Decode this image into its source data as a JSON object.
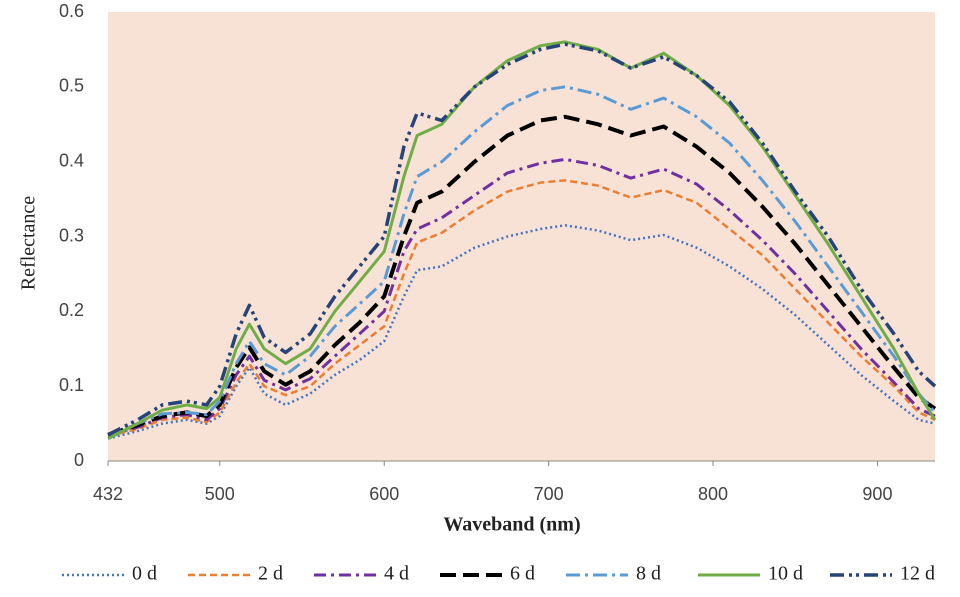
{
  "chart_data": {
    "type": "line",
    "x_label": "Waveband (nm)",
    "y_label": "Reflectance",
    "x": [
      432,
      450,
      465,
      480,
      492,
      500,
      510,
      518,
      527,
      540,
      555,
      570,
      585,
      600,
      612,
      620,
      635,
      655,
      675,
      695,
      710,
      730,
      750,
      770,
      790,
      810,
      830,
      850,
      870,
      890,
      910,
      925,
      935
    ],
    "xlim": [
      432,
      935
    ],
    "xticks": [
      432,
      500,
      600,
      700,
      800,
      900
    ],
    "ylim": [
      0,
      0.6
    ],
    "yticks": [
      0,
      0.1,
      0.2,
      0.3,
      0.4,
      0.5,
      0.6
    ],
    "background": "#f8e2d6",
    "legend": "bottom",
    "series": [
      {
        "name": "0 d",
        "color": "#4472c4",
        "dash": "2 3",
        "width": 2.5,
        "values": [
          0.03,
          0.04,
          0.05,
          0.055,
          0.05,
          0.06,
          0.1,
          0.125,
          0.09,
          0.075,
          0.09,
          0.115,
          0.135,
          0.16,
          0.22,
          0.255,
          0.26,
          0.285,
          0.3,
          0.31,
          0.315,
          0.308,
          0.295,
          0.302,
          0.285,
          0.26,
          0.23,
          0.195,
          0.155,
          0.115,
          0.08,
          0.055,
          0.05
        ]
      },
      {
        "name": "2 d",
        "color": "#ed7d31",
        "dash": "7 4",
        "width": 2.5,
        "values": [
          0.033,
          0.043,
          0.055,
          0.058,
          0.052,
          0.065,
          0.105,
          0.13,
          0.1,
          0.088,
          0.1,
          0.13,
          0.155,
          0.18,
          0.25,
          0.292,
          0.305,
          0.335,
          0.36,
          0.372,
          0.375,
          0.368,
          0.352,
          0.362,
          0.345,
          0.31,
          0.275,
          0.23,
          0.185,
          0.14,
          0.1,
          0.065,
          0.055
        ]
      },
      {
        "name": "4 d",
        "color": "#7030a0",
        "dash": "12 5 3 5",
        "width": 3,
        "values": [
          0.035,
          0.045,
          0.058,
          0.062,
          0.055,
          0.07,
          0.115,
          0.14,
          0.108,
          0.095,
          0.11,
          0.14,
          0.17,
          0.2,
          0.28,
          0.31,
          0.325,
          0.355,
          0.385,
          0.398,
          0.403,
          0.395,
          0.378,
          0.39,
          0.37,
          0.335,
          0.295,
          0.25,
          0.2,
          0.15,
          0.105,
          0.07,
          0.06
        ]
      },
      {
        "name": "6 d",
        "color": "#000000",
        "dash": "16 7",
        "width": 4,
        "values": [
          0.035,
          0.048,
          0.06,
          0.065,
          0.06,
          0.075,
          0.125,
          0.152,
          0.12,
          0.102,
          0.12,
          0.155,
          0.185,
          0.22,
          0.3,
          0.345,
          0.36,
          0.4,
          0.435,
          0.455,
          0.46,
          0.45,
          0.435,
          0.447,
          0.42,
          0.385,
          0.34,
          0.29,
          0.235,
          0.18,
          0.125,
          0.085,
          0.07
        ]
      },
      {
        "name": "8 d",
        "color": "#5b9bd5",
        "dash": "14 5 3 5",
        "width": 3,
        "values": [
          0.035,
          0.05,
          0.063,
          0.065,
          0.062,
          0.08,
          0.13,
          0.16,
          0.13,
          0.115,
          0.14,
          0.18,
          0.21,
          0.24,
          0.33,
          0.38,
          0.4,
          0.44,
          0.475,
          0.495,
          0.5,
          0.49,
          0.47,
          0.485,
          0.46,
          0.425,
          0.375,
          0.32,
          0.26,
          0.2,
          0.14,
          0.09,
          0.065
        ]
      },
      {
        "name": "10 d",
        "color": "#70ad47",
        "dash": "none",
        "width": 3,
        "values": [
          0.03,
          0.05,
          0.068,
          0.075,
          0.07,
          0.085,
          0.15,
          0.183,
          0.15,
          0.13,
          0.15,
          0.2,
          0.24,
          0.28,
          0.38,
          0.435,
          0.45,
          0.5,
          0.535,
          0.555,
          0.56,
          0.55,
          0.525,
          0.545,
          0.515,
          0.475,
          0.42,
          0.355,
          0.29,
          0.22,
          0.15,
          0.09,
          0.055
        ]
      },
      {
        "name": "12 d",
        "color": "#264478",
        "dash": "14 5 3 4 3 5",
        "width": 3.5,
        "values": [
          0.035,
          0.055,
          0.075,
          0.08,
          0.075,
          0.1,
          0.17,
          0.208,
          0.165,
          0.145,
          0.17,
          0.22,
          0.26,
          0.3,
          0.42,
          0.465,
          0.455,
          0.5,
          0.53,
          0.55,
          0.557,
          0.548,
          0.525,
          0.54,
          0.515,
          0.48,
          0.425,
          0.36,
          0.3,
          0.23,
          0.17,
          0.12,
          0.1
        ]
      }
    ]
  }
}
